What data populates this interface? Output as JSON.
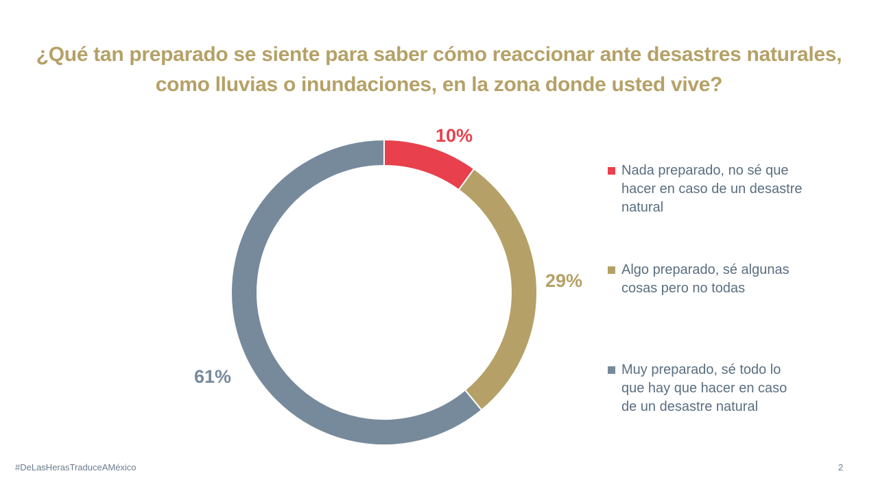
{
  "chart_data": {
    "type": "pie",
    "variant": "donut",
    "title": "¿Qué tan preparado se siente para saber cómo reaccionar ante desastres naturales, como lluvias o inundaciones, en la zona donde usted vive?",
    "title_lines": [
      "¿Qué tan preparado se siente para saber cómo reaccionar ante desastres naturales,",
      "como lluvias o inundaciones, en la zona donde usted vive?"
    ],
    "categories": [
      "Nada preparado, no sé que hacer en caso de un desastre natural",
      "Algo preparado, sé algunas cosas pero no todas",
      "Muy preparado, sé todo lo que hay que hacer en caso de un desastre natural"
    ],
    "legend_lines": [
      [
        "Nada preparado, no sé que",
        "hacer en caso de un desastre",
        "natural"
      ],
      [
        "Algo preparado, sé algunas",
        "cosas pero no todas"
      ],
      [
        "Muy preparado, sé todo lo",
        "que hay que hacer en caso",
        "de un desastre natural"
      ]
    ],
    "values": [
      10,
      29,
      61
    ],
    "value_labels": [
      "10%",
      "29%",
      "61%"
    ],
    "colors": [
      "#e8404c",
      "#b5a167",
      "#778a9c"
    ],
    "legend_position": "right",
    "start_angle": "top, clockwise"
  },
  "footer": {
    "hashtag": "#DeLasHerasTraduceAMéxico",
    "page_number": "2"
  }
}
